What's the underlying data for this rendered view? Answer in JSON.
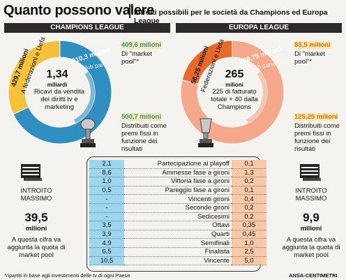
{
  "title": "Quanto possono valere",
  "subtitle": "Introiti possibili per le società da Champions ed Europa League",
  "champions": {
    "header": "CHAMPIONS LEAGUE",
    "ring_label_outer": "429,7 milioni",
    "ring_label_outer_sub": "A federazioni e Uefa",
    "ring_label_inner": "910,3 milioni",
    "ring_label_inner_sub": "Ai club partecipanti",
    "center_value": "1,34",
    "center_unit": "miliardi",
    "center_text": "Ricavi da vendita dei diritti tv e marketing",
    "market_value": "409,6 milioni",
    "market_text": "Di \"market pool\"*",
    "fixed_value": "500,7 milioni",
    "fixed_text": "Distribuiti come premi fissi in funzione dei risultati",
    "max_label": "INTROITO MASSIMO",
    "max_value": "39,5",
    "max_unit": "milioni",
    "max_note": "A questa cifra va aggiunta la quota di market pool"
  },
  "europa": {
    "header": "EUROPA LEAGUE",
    "ring_label_outer": "56,25 milioni",
    "ring_label_outer_sub": "Federazioni e Uefa",
    "ring_label_inner": "208,75 milioni",
    "ring_label_inner_sub": "Ai club partecipanti",
    "center_value": "265",
    "center_unit": "milioni",
    "center_text1": "225 di fatturato",
    "center_text2": "totale + 40 dalla",
    "center_text3": "Champions",
    "market_value": "83,5 milioni",
    "market_text": "Di \"market pool\"*",
    "fixed_value": "125,25 milioni",
    "fixed_text": "Distribuiti come premi fissi in funzione dei risultati",
    "max_label": "INTROITO MASSIMO",
    "max_value": "9,9",
    "max_unit": "milioni",
    "max_note": "A questa cifra va aggiunta la quota di market pool"
  },
  "colors": {
    "blue": "#2f8fc0",
    "lightblue": "#9ed6ee",
    "yellow": "#f3c23a",
    "orange": "#e8692a",
    "salmon": "#f6a98a",
    "dark": "#2b2b2b"
  },
  "chart_data": {
    "type": "table",
    "columns": [
      "Champions League",
      "",
      "Europa League"
    ],
    "rows": [
      {
        "label": "Partecipazione ai playoff",
        "cl": "2,1",
        "el": "0,1"
      },
      {
        "label": "Ammesse fase a gironi",
        "cl": "8,6",
        "el": "1,3"
      },
      {
        "label": "Vittoria fase a gironi",
        "cl": "1,0",
        "el": "0,2"
      },
      {
        "label": "Pareggio fase a gironi",
        "cl": "0,5",
        "el": "0,1"
      },
      {
        "label": "Vincenti gironi",
        "cl": "-",
        "el": "0,4"
      },
      {
        "label": "Seconde gironi",
        "cl": "-",
        "el": "0,2"
      },
      {
        "label": "Sedicesimi",
        "cl": "-",
        "el": "0,2"
      },
      {
        "label": "Ottavi",
        "cl": "3,5",
        "el": "0,35"
      },
      {
        "label": "Quarti",
        "cl": "3,9",
        "el": "0,45"
      },
      {
        "label": "Semifinali",
        "cl": "4,9",
        "el": "1,0"
      },
      {
        "label": "Finalista",
        "cl": "6,5",
        "el": "2,5"
      },
      {
        "label": "Vincente",
        "cl": "10,5",
        "el": "5,0"
      }
    ],
    "donuts": [
      {
        "name": "Champions League",
        "total": 1340,
        "slices": [
          {
            "label": "A federazioni e Uefa",
            "value": 429.7
          },
          {
            "label": "Ai club partecipanti",
            "value": 910.3
          }
        ]
      },
      {
        "name": "Europa League",
        "total": 265,
        "slices": [
          {
            "label": "Federazioni e Uefa",
            "value": 56.25
          },
          {
            "label": "Ai club partecipanti",
            "value": 208.75
          }
        ]
      }
    ]
  },
  "footnote": "*ripartiti in base agli investimenti delle tv di ogni Paese",
  "credit": "ANSA-CENTIMETRI"
}
